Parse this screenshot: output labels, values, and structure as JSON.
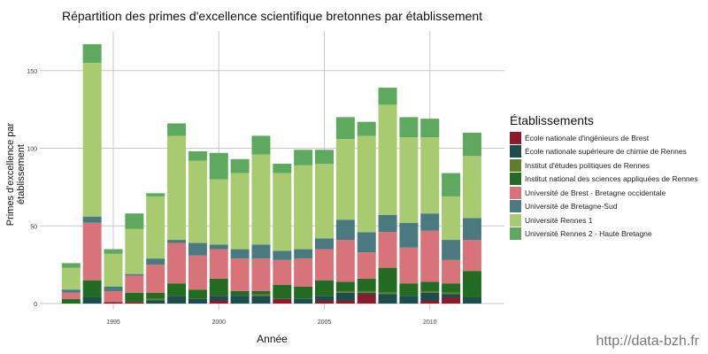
{
  "chart_data": {
    "type": "bar",
    "stacked": true,
    "title": "Répartition des primes d'excellence scientifique bretonnes par établissement",
    "xlabel": "Année",
    "ylabel": "Primes d'excellence par établissement",
    "ylim": [
      0,
      175
    ],
    "yticks": [
      0,
      50,
      100,
      150
    ],
    "xticks": [
      1995,
      2000,
      2005,
      2010
    ],
    "grid": true,
    "legend_position": "right",
    "legend_title": "Établissements",
    "categories": [
      1993,
      1994,
      1995,
      1996,
      1997,
      1998,
      1999,
      2000,
      2001,
      2002,
      2003,
      2004,
      2005,
      2006,
      2007,
      2008,
      2009,
      2010,
      2011,
      2012
    ],
    "series": [
      {
        "name": "École nationale d'ingénieurs de Brest",
        "color": "#8B1A2B",
        "values": [
          0,
          0,
          1,
          1,
          0,
          0,
          0,
          2,
          0,
          0,
          3,
          0,
          2,
          2,
          6,
          0,
          0,
          2,
          4,
          0
        ]
      },
      {
        "name": "École nationale supérieure de chimie de Rennes",
        "color": "#1B4D4F",
        "values": [
          0,
          4,
          0,
          0,
          2,
          5,
          3,
          3,
          5,
          5,
          0,
          3,
          3,
          5,
          1,
          6,
          5,
          5,
          2,
          4
        ]
      },
      {
        "name": "Institut d'études politiques de Rennes",
        "color": "#5E7F2A",
        "values": [
          0,
          0,
          0,
          0,
          1,
          0,
          0,
          0,
          0,
          1,
          0,
          0,
          0,
          1,
          1,
          1,
          0,
          1,
          1,
          0
        ]
      },
      {
        "name": "Institut national des sciences appliquées de Rennes",
        "color": "#236B23",
        "values": [
          3,
          11,
          0,
          6,
          4,
          8,
          6,
          11,
          3,
          2,
          9,
          8,
          10,
          6,
          8,
          16,
          8,
          6,
          6,
          17
        ]
      },
      {
        "name": "Université de Brest - Bretagne occidentale",
        "color": "#D9737A",
        "values": [
          4,
          37,
          7,
          11,
          18,
          26,
          22,
          19,
          21,
          21,
          16,
          18,
          20,
          27,
          17,
          23,
          23,
          33,
          15,
          20
        ]
      },
      {
        "name": "Université de Bretagne-Sud",
        "color": "#4A7A80",
        "values": [
          2,
          4,
          3,
          1,
          4,
          2,
          8,
          3,
          6,
          9,
          6,
          6,
          7,
          13,
          13,
          11,
          16,
          11,
          13,
          14
        ]
      },
      {
        "name": "Université Rennes 1",
        "color": "#A8CB72",
        "values": [
          14,
          99,
          21,
          29,
          40,
          67,
          53,
          42,
          49,
          58,
          50,
          54,
          48,
          52,
          62,
          71,
          55,
          49,
          28,
          40
        ]
      },
      {
        "name": "Université Rennes 2 - Haute Bretagne",
        "color": "#5FA85F",
        "values": [
          3,
          12,
          3,
          10,
          2,
          8,
          6,
          17,
          9,
          12,
          6,
          10,
          9,
          14,
          9,
          11,
          13,
          12,
          15,
          15
        ]
      }
    ]
  },
  "watermark": "http://data-bzh.fr"
}
